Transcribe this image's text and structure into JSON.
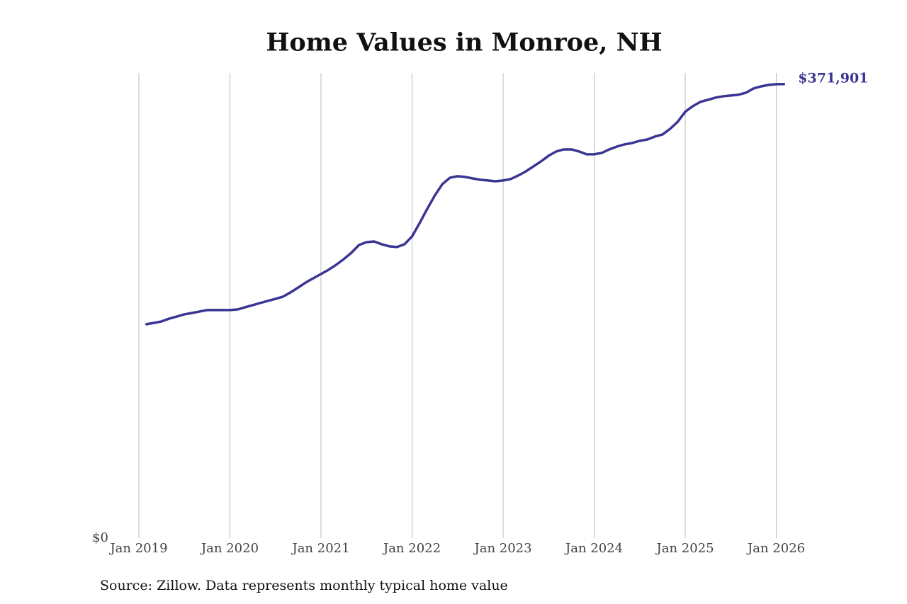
{
  "chart_data": {
    "type": "line",
    "title": "Home Values in Monroe, NH",
    "source": "Source: Zillow. Data represents monthly typical home value",
    "x": [
      "2019-02",
      "2019-03",
      "2019-04",
      "2019-05",
      "2019-06",
      "2019-07",
      "2019-08",
      "2019-09",
      "2019-10",
      "2019-11",
      "2019-12",
      "2020-01",
      "2020-02",
      "2020-03",
      "2020-04",
      "2020-05",
      "2020-06",
      "2020-07",
      "2020-08",
      "2020-09",
      "2020-10",
      "2020-11",
      "2020-12",
      "2021-01",
      "2021-02",
      "2021-03",
      "2021-04",
      "2021-05",
      "2021-06",
      "2021-07",
      "2021-08",
      "2021-09",
      "2021-10",
      "2021-11",
      "2021-12",
      "2022-01",
      "2022-02",
      "2022-03",
      "2022-04",
      "2022-05",
      "2022-06",
      "2022-07",
      "2022-08",
      "2022-09",
      "2022-10",
      "2022-11",
      "2022-12",
      "2023-01",
      "2023-02",
      "2023-03",
      "2023-04",
      "2023-05",
      "2023-06",
      "2023-07",
      "2023-08",
      "2023-09",
      "2023-10",
      "2023-11",
      "2023-12",
      "2024-01",
      "2024-02",
      "2024-03",
      "2024-04",
      "2024-05",
      "2024-06",
      "2024-07",
      "2024-08",
      "2024-09",
      "2024-10",
      "2024-11",
      "2024-12",
      "2025-01",
      "2025-02",
      "2025-03",
      "2025-04",
      "2025-05",
      "2025-06",
      "2025-07",
      "2025-08",
      "2025-09",
      "2025-10",
      "2025-11",
      "2025-12",
      "2026-01",
      "2026-02"
    ],
    "series": [
      {
        "name": "Typical home value",
        "color": "#3a3593",
        "values": [
          175200,
          176300,
          177500,
          179800,
          181500,
          183300,
          184400,
          185600,
          186800,
          186800,
          186800,
          186800,
          187300,
          189100,
          190800,
          192600,
          194300,
          196000,
          197800,
          201300,
          205300,
          209400,
          212900,
          216300,
          219800,
          223900,
          228500,
          233700,
          240100,
          242400,
          243000,
          240700,
          239000,
          238400,
          240700,
          247100,
          258100,
          269700,
          280700,
          290000,
          295200,
          296400,
          295800,
          294600,
          293500,
          292900,
          292300,
          292900,
          294100,
          297000,
          300400,
          304500,
          308600,
          313200,
          316700,
          318400,
          318400,
          316700,
          314400,
          314400,
          315500,
          318400,
          320700,
          322500,
          323600,
          325400,
          326500,
          328900,
          330600,
          335200,
          341000,
          349200,
          353800,
          357300,
          359000,
          360800,
          361900,
          362500,
          363100,
          364800,
          368300,
          370000,
          371200,
          371800,
          371901
        ],
        "last_label": "$371,901"
      }
    ],
    "xlim": [
      "2019-01",
      "2026-02"
    ],
    "xticks": [
      {
        "value": "2019-01",
        "label": "Jan 2019"
      },
      {
        "value": "2020-01",
        "label": "Jan 2020"
      },
      {
        "value": "2021-01",
        "label": "Jan 2021"
      },
      {
        "value": "2022-01",
        "label": "Jan 2022"
      },
      {
        "value": "2023-01",
        "label": "Jan 2023"
      },
      {
        "value": "2024-01",
        "label": "Jan 2024"
      },
      {
        "value": "2025-01",
        "label": "Jan 2025"
      },
      {
        "value": "2026-01",
        "label": "Jan 2026"
      }
    ],
    "ylim": [
      0,
      381000
    ],
    "yticks": [
      {
        "value": 0,
        "label": "$0"
      }
    ],
    "grid": true
  }
}
